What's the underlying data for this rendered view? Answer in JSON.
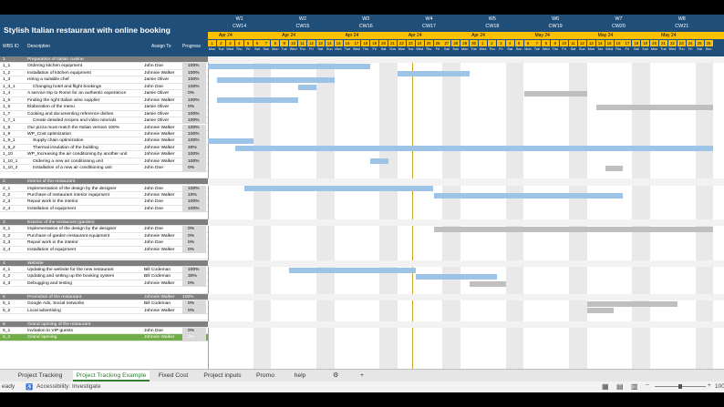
{
  "app": {
    "title": "Stylish Italian restaurant with online booking"
  },
  "columns": {
    "wbs": "WBS ID",
    "desc": "Description",
    "assign": "Assign To",
    "progress": "Progress"
  },
  "timeline": {
    "weeks": [
      {
        "w": "W1",
        "cw": "CW14"
      },
      {
        "w": "W2",
        "cw": "CW15"
      },
      {
        "w": "W3",
        "cw": "CW16"
      },
      {
        "w": "W4",
        "cw": "CW17"
      },
      {
        "w": "W5",
        "cw": "CW18"
      },
      {
        "w": "W6",
        "cw": "CW19"
      },
      {
        "w": "W7",
        "cw": "CW20"
      },
      {
        "w": "W8",
        "cw": "CW21"
      }
    ],
    "months": [
      "Apr 24",
      "Apr 24",
      "Apr 24",
      "Apr 24",
      "Apr 24",
      "May 24",
      "May 24",
      "May 24"
    ],
    "days": [
      "1",
      "2",
      "3",
      "4",
      "5",
      "6",
      "7",
      "8",
      "9",
      "10",
      "11",
      "12",
      "13",
      "14",
      "15",
      "16",
      "17",
      "18",
      "19",
      "20",
      "21",
      "22",
      "23",
      "24",
      "25",
      "26",
      "27",
      "28",
      "29",
      "30",
      "1",
      "2",
      "3",
      "4",
      "5",
      "6",
      "7",
      "8",
      "9",
      "10",
      "11",
      "12",
      "13",
      "14",
      "15",
      "16",
      "17",
      "18",
      "19",
      "20",
      "21",
      "22",
      "23",
      "24",
      "25",
      "26"
    ],
    "daynames": [
      "Mon",
      "Tue",
      "Wed",
      "Thu",
      "Fri",
      "Sat",
      "Sun"
    ]
  },
  "rows": [
    {
      "id": "1",
      "desc": "Preparation of Italian cuisine",
      "who": "",
      "pct": "",
      "type": "sec"
    },
    {
      "id": "1_1",
      "desc": "Ordering kitchen equipment",
      "who": "John Doe",
      "pct": "100%",
      "type": "task",
      "bar": [
        1,
        18
      ],
      "color": "#9dc3e6"
    },
    {
      "id": "1_2",
      "desc": "Installation of kitchen equipment",
      "who": "Johnnie Walker",
      "pct": "100%",
      "type": "task",
      "bar": [
        22,
        29
      ],
      "color": "#9dc3e6"
    },
    {
      "id": "1_3",
      "desc": "Hiring a suitable chef",
      "who": "Jamie Oliver",
      "pct": "100%",
      "type": "task",
      "bar": [
        2,
        14
      ],
      "color": "#9dc3e6"
    },
    {
      "id": "1_3_1",
      "desc": "Changing hotel and flight bookings",
      "who": "John Doe",
      "pct": "100%",
      "type": "task",
      "bar": [
        11,
        12
      ],
      "color": "#9dc3e6"
    },
    {
      "id": "1_4",
      "desc": "A service trip to Rome for an authentic experience",
      "who": "Jamie Oliver",
      "pct": "0%",
      "type": "task",
      "bar": [
        36,
        42
      ],
      "color": "#bfbfbf"
    },
    {
      "id": "1_5",
      "desc": "Finding the right Italian wine supplier",
      "who": "Johnnie Walker",
      "pct": "100%",
      "type": "task",
      "bar": [
        2,
        10
      ],
      "color": "#9dc3e6"
    },
    {
      "id": "1_6",
      "desc": "Elaboration of the menu",
      "who": "Jamie Oliver",
      "pct": "0%",
      "type": "task",
      "bar": [
        44,
        56
      ],
      "color": "#bfbfbf"
    },
    {
      "id": "1_7",
      "desc": "Cooking and documenting reference dishes",
      "who": "Jamie Oliver",
      "pct": "100%",
      "type": "task"
    },
    {
      "id": "1_7_1",
      "desc": "Create detailed recipes and video tutorials",
      "who": "Jamie Oliver",
      "pct": "100%",
      "type": "task"
    },
    {
      "id": "1_8",
      "desc": "Our pizza must match the Italian version 100%",
      "who": "Johnnie Walker",
      "pct": "100%",
      "type": "task"
    },
    {
      "id": "1_9",
      "desc": "WP_Cost optimization",
      "who": "Johnnie Walker",
      "pct": "100%",
      "type": "task"
    },
    {
      "id": "1_9_1",
      "desc": "Supply chain optimization",
      "who": "Johnnie Walker",
      "pct": "100%",
      "type": "task",
      "bar": [
        1,
        5
      ],
      "color": "#9dc3e6"
    },
    {
      "id": "1_9_2",
      "desc": "Thermal insulation of the building",
      "who": "Johnnie Walker",
      "pct": "40%",
      "type": "task",
      "bar": [
        4,
        56
      ],
      "color": "#9dc3e6"
    },
    {
      "id": "1_10",
      "desc": "WP_Increasing the air conditioning by another unit",
      "who": "Johnnie Walker",
      "pct": "100%",
      "type": "task"
    },
    {
      "id": "1_10_1",
      "desc": "Ordering a new air conditioning unit",
      "who": "Johnnie Walker",
      "pct": "100%",
      "type": "task",
      "bar": [
        19,
        20
      ],
      "color": "#9dc3e6"
    },
    {
      "id": "1_10_2",
      "desc": "Installation of a new air conditioning unit",
      "who": "John Doe",
      "pct": "0%",
      "type": "task",
      "bar": [
        45,
        46
      ],
      "color": "#bfbfbf"
    },
    {
      "id": "",
      "desc": "",
      "who": "",
      "pct": "",
      "type": "blank"
    },
    {
      "id": "2",
      "desc": "Interior of the restaurant",
      "who": "",
      "pct": "",
      "type": "sec"
    },
    {
      "id": "2_1",
      "desc": "Implementation of the design by the designer",
      "who": "John Doe",
      "pct": "100%",
      "type": "task",
      "bar": [
        5,
        25
      ],
      "color": "#9dc3e6"
    },
    {
      "id": "2_2",
      "desc": "Purchase of restaurant interior equipment",
      "who": "Johnnie Walker",
      "pct": "10%",
      "type": "task",
      "bar": [
        26,
        46
      ],
      "color": "#9dc3e6"
    },
    {
      "id": "2_3",
      "desc": "Repair work in the interior",
      "who": "John Doe",
      "pct": "100%",
      "type": "task"
    },
    {
      "id": "2_4",
      "desc": "Installation of equipment",
      "who": "John Doe",
      "pct": "100%",
      "type": "task"
    },
    {
      "id": "",
      "desc": "",
      "who": "",
      "pct": "",
      "type": "blank"
    },
    {
      "id": "3",
      "desc": "Exterior of the restaurant (garden)",
      "who": "",
      "pct": "",
      "type": "sec"
    },
    {
      "id": "3_1",
      "desc": "Implementation of the design by the designer",
      "who": "John Doe",
      "pct": "0%",
      "type": "task",
      "bar": [
        26,
        56
      ],
      "color": "#bfbfbf"
    },
    {
      "id": "3_2",
      "desc": "Purchase of garden restaurant equipment",
      "who": "Johnnie Walker",
      "pct": "0%",
      "type": "task"
    },
    {
      "id": "3_3",
      "desc": "Repair work in the interior",
      "who": "John Doe",
      "pct": "0%",
      "type": "task"
    },
    {
      "id": "3_4",
      "desc": "Installation of equipment",
      "who": "Johnnie Walker",
      "pct": "0%",
      "type": "task"
    },
    {
      "id": "",
      "desc": "",
      "who": "",
      "pct": "",
      "type": "blank"
    },
    {
      "id": "4",
      "desc": "Website",
      "who": "",
      "pct": "",
      "type": "sec"
    },
    {
      "id": "4_1",
      "desc": "Updating the website for the new restaurant",
      "who": "Bill Codeman",
      "pct": "100%",
      "type": "task",
      "bar": [
        10,
        23
      ],
      "color": "#9dc3e6"
    },
    {
      "id": "4_2",
      "desc": "Updating and setting up the booking system",
      "who": "Bill Codeman",
      "pct": "30%",
      "type": "task",
      "bar": [
        24,
        32
      ],
      "color": "#9dc3e6"
    },
    {
      "id": "4_3",
      "desc": "Debugging and testing",
      "who": "Johnnie Walker",
      "pct": "0%",
      "type": "task",
      "bar": [
        30,
        33
      ],
      "color": "#bfbfbf"
    },
    {
      "id": "",
      "desc": "",
      "who": "",
      "pct": "",
      "type": "blank"
    },
    {
      "id": "5",
      "desc": "Promotion of the restaurant",
      "who": "Johnnie Walker",
      "pct": "100%",
      "type": "sec"
    },
    {
      "id": "5_1",
      "desc": "Google Ads, Social networks",
      "who": "Bill Codeman",
      "pct": "0%",
      "type": "task",
      "bar": [
        43,
        52
      ],
      "color": "#bfbfbf"
    },
    {
      "id": "5_2",
      "desc": "Local advertising",
      "who": "Johnnie Walker",
      "pct": "0%",
      "type": "task",
      "bar": [
        43,
        45
      ],
      "color": "#bfbfbf"
    },
    {
      "id": "",
      "desc": "",
      "who": "",
      "pct": "",
      "type": "blank"
    },
    {
      "id": "6",
      "desc": "Grand opening of the restaurant",
      "who": "",
      "pct": "",
      "type": "sec"
    },
    {
      "id": "6_1",
      "desc": "Invitation to VIP guests",
      "who": "John Doe",
      "pct": "0%",
      "type": "task"
    },
    {
      "id": "6_2",
      "desc": "Grand opening",
      "who": "Johnnie Walker",
      "pct": "0%",
      "type": "ms"
    }
  ],
  "tabs": [
    "Project Tracking",
    "Project Tracking Example",
    "Fixed Cost",
    "Project inputs",
    "Promo",
    "help",
    "⚙",
    "+"
  ],
  "status": {
    "ready": "eady",
    "accessibility": "Accessibility: Investigate",
    "zoom": "100"
  },
  "colors": {
    "header": "#1f4e79",
    "month": "#ffc000",
    "section": "#7f7f7f",
    "done": "#9dc3e6",
    "todo": "#bfbfbf",
    "milestone": "#70ad47"
  }
}
